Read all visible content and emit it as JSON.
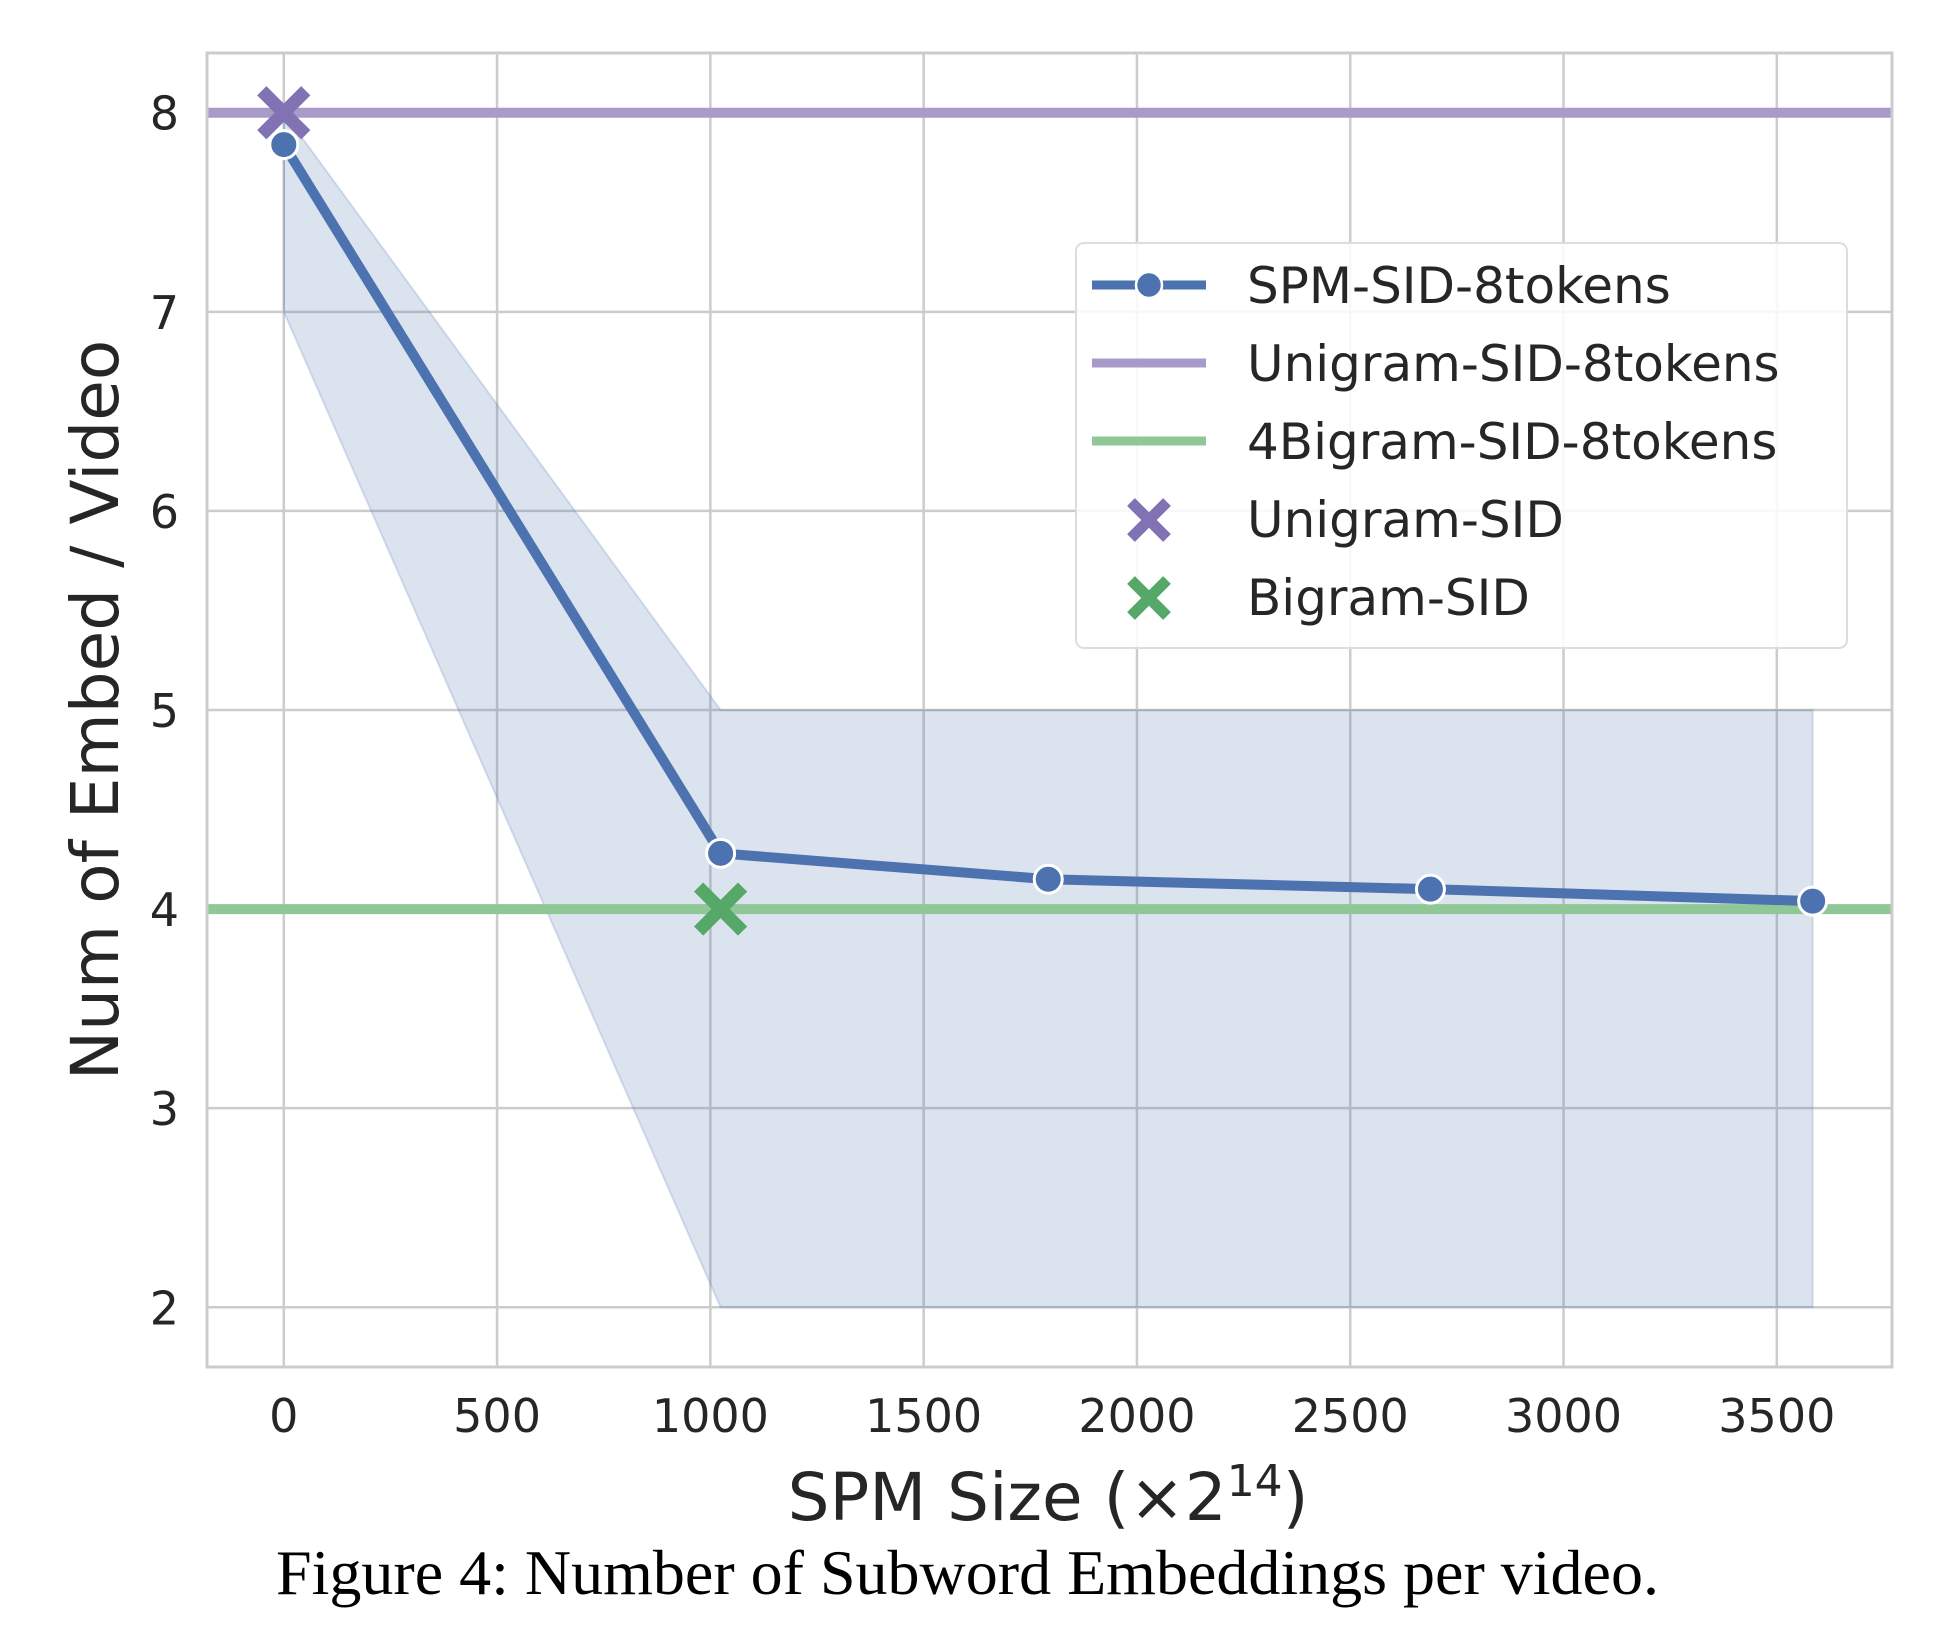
{
  "chart_data": {
    "type": "line",
    "xlabel": "SPM Size (×2",
    "xlabel_sup": "14",
    "xlabel_close": ")",
    "ylabel": "Num of Embed / Video",
    "xlim": [
      -180,
      3770
    ],
    "ylim": [
      1.7,
      8.3
    ],
    "xticks": [
      0,
      500,
      1000,
      1500,
      2000,
      2500,
      3000,
      3500
    ],
    "yticks": [
      2,
      3,
      4,
      5,
      6,
      7,
      8
    ],
    "grid": true,
    "legend_position": "upper-right",
    "series": [
      {
        "name": "SPM-SID-8tokens",
        "kind": "line-markers",
        "color": "#4c72b0",
        "x": [
          0,
          1024,
          1792,
          2688,
          3584
        ],
        "y": [
          7.84,
          4.28,
          4.15,
          4.1,
          4.04
        ],
        "band_upper": [
          8.0,
          5.0,
          5.0,
          5.0,
          5.0
        ],
        "band_lower": [
          7.0,
          2.0,
          2.0,
          2.0,
          2.0
        ]
      },
      {
        "name": "Unigram-SID-8tokens",
        "kind": "hline",
        "color": "#a99bc8",
        "y": 8
      },
      {
        "name": "4Bigram-SID-8tokens",
        "kind": "hline",
        "color": "#8fc796",
        "y": 4
      },
      {
        "name": "Unigram-SID",
        "kind": "x-marker",
        "color": "#8172b3",
        "x": 0,
        "y": 8
      },
      {
        "name": "Bigram-SID",
        "kind": "x-marker",
        "color": "#55a868",
        "x": 1024,
        "y": 4
      }
    ]
  },
  "caption": "Figure 4: Number of Subword Embeddings per video."
}
